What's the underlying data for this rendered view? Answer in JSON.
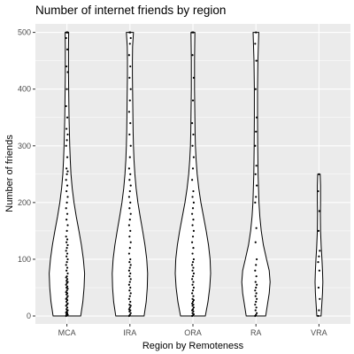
{
  "chart_data": {
    "type": "violin",
    "title": "Number of internet friends by region",
    "xlabel": "Region by Remoteness",
    "ylabel": "Number of friends",
    "categories": [
      "MCA",
      "IRA",
      "ORA",
      "RA",
      "VRA"
    ],
    "ylim": [
      -14,
      515
    ],
    "yticks": [
      0,
      100,
      200,
      300,
      400,
      500
    ],
    "grid": true,
    "legend": "none",
    "colors": {
      "panel": "#ebebeb",
      "grid": "#ffffff",
      "violin_fill": "#ffffff",
      "outline": "#000000",
      "points": "#000000"
    },
    "series": [
      {
        "category": "MCA",
        "profile": [
          [
            0,
            0.78
          ],
          [
            25,
            0.9
          ],
          [
            50,
            0.97
          ],
          [
            75,
            1.0
          ],
          [
            100,
            0.93
          ],
          [
            125,
            0.82
          ],
          [
            150,
            0.68
          ],
          [
            175,
            0.53
          ],
          [
            200,
            0.4
          ],
          [
            225,
            0.3
          ],
          [
            250,
            0.23
          ],
          [
            275,
            0.19
          ],
          [
            300,
            0.16
          ],
          [
            325,
            0.14
          ],
          [
            350,
            0.12
          ],
          [
            375,
            0.11
          ],
          [
            400,
            0.1
          ],
          [
            425,
            0.09
          ],
          [
            450,
            0.09
          ],
          [
            475,
            0.09
          ],
          [
            500,
            0.1
          ]
        ],
        "points": [
          0,
          1,
          2,
          3,
          5,
          6,
          8,
          10,
          12,
          15,
          18,
          20,
          22,
          25,
          28,
          30,
          32,
          35,
          38,
          40,
          42,
          45,
          48,
          50,
          52,
          55,
          58,
          60,
          62,
          65,
          68,
          70,
          75,
          80,
          85,
          90,
          95,
          100,
          105,
          110,
          115,
          120,
          125,
          130,
          135,
          140,
          150,
          160,
          170,
          180,
          190,
          200,
          210,
          220,
          230,
          240,
          250,
          255,
          260,
          280,
          300,
          310,
          320,
          330,
          350,
          370,
          400,
          430,
          440,
          470,
          490,
          500,
          500,
          500
        ]
      },
      {
        "category": "IRA",
        "profile": [
          [
            0,
            0.8
          ],
          [
            25,
            0.92
          ],
          [
            50,
            0.98
          ],
          [
            75,
            1.0
          ],
          [
            100,
            0.95
          ],
          [
            125,
            0.85
          ],
          [
            150,
            0.72
          ],
          [
            175,
            0.58
          ],
          [
            200,
            0.45
          ],
          [
            225,
            0.35
          ],
          [
            250,
            0.28
          ],
          [
            275,
            0.23
          ],
          [
            300,
            0.2
          ],
          [
            325,
            0.18
          ],
          [
            350,
            0.17
          ],
          [
            375,
            0.16
          ],
          [
            400,
            0.15
          ],
          [
            425,
            0.14
          ],
          [
            450,
            0.14
          ],
          [
            475,
            0.15
          ],
          [
            490,
            0.18
          ],
          [
            500,
            0.2
          ]
        ],
        "points": [
          0,
          2,
          5,
          8,
          10,
          12,
          15,
          18,
          20,
          25,
          30,
          35,
          40,
          45,
          50,
          55,
          60,
          65,
          70,
          75,
          80,
          85,
          90,
          95,
          100,
          110,
          120,
          130,
          140,
          150,
          160,
          170,
          180,
          190,
          200,
          210,
          220,
          230,
          240,
          250,
          260,
          280,
          300,
          320,
          340,
          360,
          380,
          400,
          420,
          440,
          460,
          480,
          490,
          500,
          500
        ]
      },
      {
        "category": "ORA",
        "profile": [
          [
            0,
            0.7
          ],
          [
            25,
            0.85
          ],
          [
            50,
            0.95
          ],
          [
            75,
            1.0
          ],
          [
            100,
            0.97
          ],
          [
            125,
            0.88
          ],
          [
            150,
            0.75
          ],
          [
            175,
            0.6
          ],
          [
            200,
            0.45
          ],
          [
            225,
            0.33
          ],
          [
            250,
            0.24
          ],
          [
            275,
            0.18
          ],
          [
            300,
            0.14
          ],
          [
            325,
            0.12
          ],
          [
            350,
            0.11
          ],
          [
            375,
            0.1
          ],
          [
            400,
            0.09
          ],
          [
            425,
            0.09
          ],
          [
            450,
            0.09
          ],
          [
            475,
            0.1
          ],
          [
            500,
            0.11
          ]
        ],
        "points": [
          0,
          1,
          3,
          5,
          8,
          10,
          12,
          15,
          18,
          20,
          22,
          25,
          28,
          30,
          35,
          40,
          45,
          50,
          55,
          60,
          65,
          70,
          75,
          80,
          85,
          90,
          95,
          100,
          110,
          120,
          130,
          140,
          150,
          160,
          170,
          180,
          190,
          200,
          210,
          220,
          240,
          260,
          280,
          300,
          320,
          340,
          380,
          420,
          460,
          500,
          500
        ]
      },
      {
        "category": "RA",
        "profile": [
          [
            0,
            0.55
          ],
          [
            20,
            0.65
          ],
          [
            40,
            0.75
          ],
          [
            60,
            0.8
          ],
          [
            80,
            0.75
          ],
          [
            100,
            0.6
          ],
          [
            125,
            0.42
          ],
          [
            150,
            0.3
          ],
          [
            175,
            0.22
          ],
          [
            200,
            0.17
          ],
          [
            250,
            0.12
          ],
          [
            300,
            0.1
          ],
          [
            350,
            0.09
          ],
          [
            400,
            0.09
          ],
          [
            450,
            0.11
          ],
          [
            480,
            0.14
          ],
          [
            500,
            0.16
          ]
        ],
        "points": [
          0,
          2,
          5,
          10,
          15,
          20,
          25,
          30,
          35,
          40,
          45,
          50,
          55,
          60,
          70,
          80,
          90,
          100,
          130,
          155,
          200,
          210,
          230,
          250,
          265,
          300,
          325,
          350,
          400,
          450,
          480,
          500
        ]
      },
      {
        "category": "VRA",
        "profile": [
          [
            0,
            0.12
          ],
          [
            20,
            0.16
          ],
          [
            40,
            0.2
          ],
          [
            60,
            0.22
          ],
          [
            80,
            0.2
          ],
          [
            100,
            0.17
          ],
          [
            120,
            0.13
          ],
          [
            150,
            0.09
          ],
          [
            180,
            0.08
          ],
          [
            200,
            0.09
          ],
          [
            230,
            0.09
          ],
          [
            250,
            0.07
          ]
        ],
        "points": [
          0,
          10,
          30,
          50,
          80,
          95,
          105,
          115,
          150,
          185,
          220,
          250
        ]
      }
    ]
  }
}
